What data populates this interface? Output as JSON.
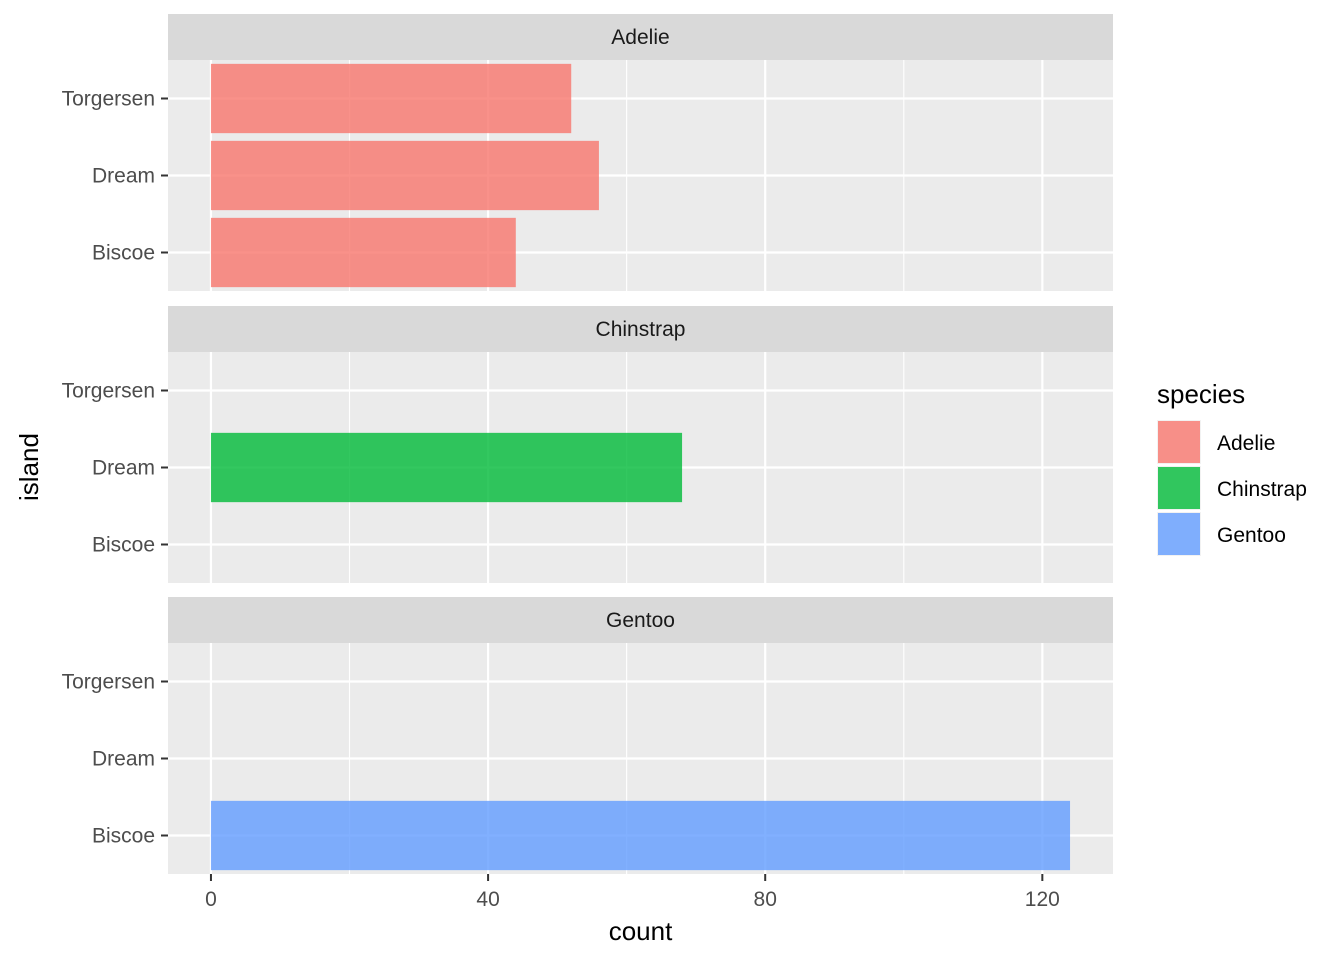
{
  "chart_data": {
    "type": "bar",
    "orientation": "horizontal",
    "facet_by": "species",
    "xlabel": "count",
    "ylabel": "island",
    "xlim": [
      -6.2,
      130.2
    ],
    "x_ticks": [
      0,
      40,
      80,
      120
    ],
    "x_minor_ticks": [
      20,
      60,
      100
    ],
    "categories": [
      "Biscoe",
      "Dream",
      "Torgersen"
    ],
    "panels": [
      {
        "title": "Adelie",
        "values": {
          "Biscoe": 44,
          "Dream": 56,
          "Torgersen": 52
        }
      },
      {
        "title": "Chinstrap",
        "values": {
          "Biscoe": 0,
          "Dream": 68,
          "Torgersen": 0
        }
      },
      {
        "title": "Gentoo",
        "values": {
          "Biscoe": 124,
          "Dream": 0,
          "Torgersen": 0
        }
      }
    ],
    "legend": {
      "title": "species",
      "placement": "right",
      "entries": [
        {
          "name": "Adelie",
          "color": "#F8766D"
        },
        {
          "name": "Chinstrap",
          "color": "#00BA38"
        },
        {
          "name": "Gentoo",
          "color": "#619CFF"
        }
      ]
    },
    "bar_opacity": 0.8,
    "grid": true,
    "colors": {
      "panel_background": "#EBEBEB",
      "strip_background": "#D9D9D9",
      "grid": "#FFFFFF",
      "tick": "#333333"
    }
  }
}
